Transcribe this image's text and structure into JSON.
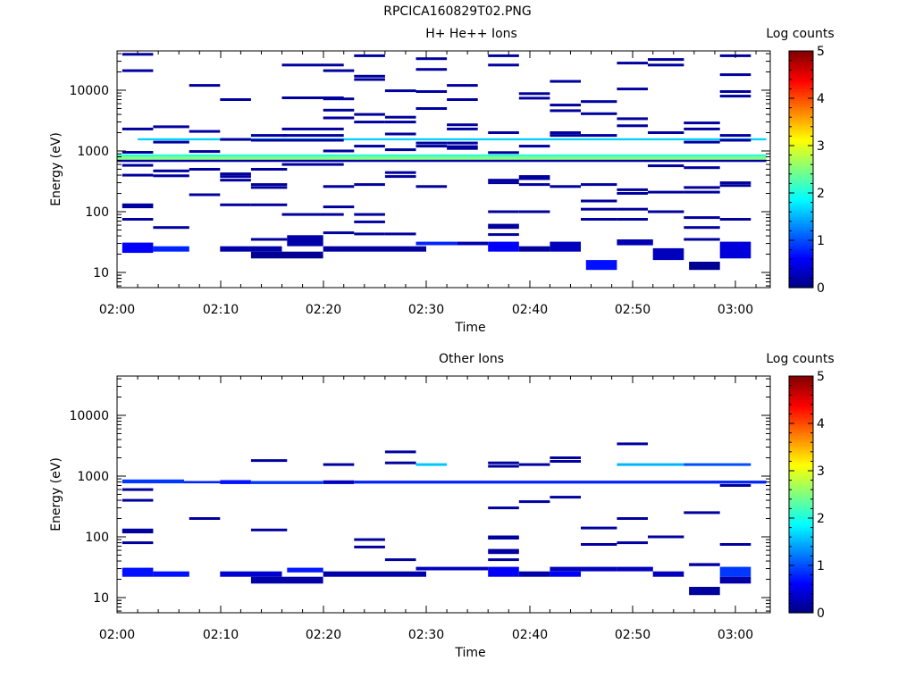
{
  "page_title": "RPCICA160829T02.PNG",
  "chart_data": [
    {
      "type": "heatmap",
      "title": "H+ He++ Ions",
      "xlabel": "Time",
      "ylabel": "Energy (eV)",
      "x_ticks": [
        "02:00",
        "02:10",
        "02:20",
        "02:30",
        "02:40",
        "02:50",
        "03:00"
      ],
      "x_range_minutes": [
        0,
        63
      ],
      "y_ticks": [
        "10",
        "100",
        "1000",
        "10000"
      ],
      "y_scale": "log",
      "ylim": [
        6,
        45000
      ],
      "colorbar": {
        "label": "Log counts",
        "ticks": [
          "0",
          "1",
          "2",
          "3",
          "4",
          "5"
        ],
        "range": [
          0,
          5
        ]
      },
      "cells": [
        {
          "t0": 0,
          "t1": 63,
          "e0": 660,
          "e1": 720,
          "c": 0.15
        },
        {
          "t0": 0,
          "t1": 63,
          "e0": 720,
          "e1": 800,
          "c": 2.55
        },
        {
          "t0": 0,
          "t1": 63,
          "e0": 800,
          "e1": 880,
          "c": 2.1
        },
        {
          "t0": 2,
          "t1": 63,
          "e0": 1500,
          "e1": 1620,
          "c": 1.65
        },
        {
          "t0": 0.5,
          "t1": 3.5,
          "e0": 21,
          "e1": 31,
          "c": 0.6
        },
        {
          "t0": 3.5,
          "t1": 7,
          "e0": 22,
          "e1": 27,
          "c": 0.8
        },
        {
          "t0": 10,
          "t1": 16,
          "e0": 22,
          "e1": 27,
          "c": 0.2
        },
        {
          "t0": 13,
          "t1": 20,
          "e0": 17,
          "e1": 22,
          "c": 0.1
        },
        {
          "t0": 16.5,
          "t1": 20,
          "e0": 27,
          "e1": 41,
          "c": 0.2
        },
        {
          "t0": 20,
          "t1": 30,
          "e0": 22,
          "e1": 27,
          "c": 0.15
        },
        {
          "t0": 29,
          "t1": 33,
          "e0": 28,
          "e1": 32,
          "c": 0.8
        },
        {
          "t0": 33,
          "t1": 36,
          "e0": 28,
          "e1": 32,
          "c": 0.25
        },
        {
          "t0": 36,
          "t1": 39,
          "e0": 22,
          "e1": 32,
          "c": 0.6
        },
        {
          "t0": 39,
          "t1": 42,
          "e0": 22,
          "e1": 27,
          "c": 0.15
        },
        {
          "t0": 42,
          "t1": 45,
          "e0": 22,
          "e1": 32,
          "c": 0.3
        },
        {
          "t0": 45.5,
          "t1": 48.5,
          "e0": 11,
          "e1": 16,
          "c": 0.7
        },
        {
          "t0": 48.5,
          "t1": 52,
          "e0": 28,
          "e1": 35,
          "c": 0.25
        },
        {
          "t0": 52,
          "t1": 55,
          "e0": 16,
          "e1": 25,
          "c": 0.3
        },
        {
          "t0": 55.5,
          "t1": 58.5,
          "e0": 11,
          "e1": 15,
          "c": 0.1
        },
        {
          "t0": 58.5,
          "t1": 61.5,
          "e0": 17,
          "e1": 32,
          "c": 0.45
        }
      ],
      "lines": [
        {
          "t0": 0.5,
          "t1": 3.5,
          "e": [
            39000,
            21000,
            2300,
            950,
            580,
            400,
            130,
            120,
            75
          ]
        },
        {
          "t0": 3.5,
          "t1": 7,
          "e": [
            2500,
            1400,
            470,
            390,
            55
          ]
        },
        {
          "t0": 7,
          "t1": 10,
          "e": [
            12000,
            2100,
            980,
            500,
            190
          ]
        },
        {
          "t0": 10,
          "t1": 13,
          "e": [
            7000,
            1550,
            420,
            380,
            330,
            130
          ]
        },
        {
          "t0": 13,
          "t1": 16.5,
          "e": [
            1800,
            1500,
            500,
            280,
            250,
            130,
            35
          ]
        },
        {
          "t0": 16,
          "t1": 22,
          "e": [
            26000,
            7500,
            2300,
            1800,
            1500,
            600,
            90
          ]
        },
        {
          "t0": 20,
          "t1": 23,
          "e": [
            21000,
            7200,
            4700,
            3500,
            1000,
            260,
            120,
            45
          ]
        },
        {
          "t0": 23,
          "t1": 26,
          "e": [
            37000,
            17000,
            15000,
            4000,
            3000,
            1200,
            280,
            90,
            68,
            43
          ]
        },
        {
          "t0": 26,
          "t1": 29,
          "e": [
            9800,
            3600,
            3000,
            1900,
            1050,
            440,
            380,
            43
          ]
        },
        {
          "t0": 29,
          "t1": 32,
          "e": [
            33000,
            22000,
            9500,
            5000,
            1350,
            1200,
            260
          ]
        },
        {
          "t0": 32,
          "t1": 35,
          "e": [
            12000,
            7000,
            2700,
            2300,
            1350,
            1180,
            1100
          ]
        },
        {
          "t0": 36,
          "t1": 39,
          "e": [
            37000,
            26000,
            2000,
            940,
            330,
            300,
            100,
            60,
            55,
            42
          ]
        },
        {
          "t0": 39,
          "t1": 42,
          "e": [
            8800,
            7400,
            1200,
            380,
            350,
            280,
            100
          ]
        },
        {
          "t0": 42,
          "t1": 45,
          "e": [
            14000,
            5700,
            4600,
            2000,
            1800,
            260
          ]
        },
        {
          "t0": 45,
          "t1": 48.5,
          "e": [
            6500,
            4100,
            1800,
            280,
            150,
            110,
            75
          ]
        },
        {
          "t0": 48.5,
          "t1": 51.5,
          "e": [
            28000,
            10500,
            3400,
            2600,
            230,
            200,
            110,
            75
          ]
        },
        {
          "t0": 51.5,
          "t1": 55,
          "e": [
            32000,
            26000,
            2000,
            570,
            210,
            100
          ]
        },
        {
          "t0": 55,
          "t1": 58.5,
          "e": [
            2900,
            2300,
            1400,
            530,
            250,
            210,
            80,
            55,
            35
          ]
        },
        {
          "t0": 58.5,
          "t1": 61.5,
          "e": [
            37000,
            18000,
            9500,
            8000,
            1800,
            1500,
            300,
            270,
            75
          ]
        }
      ]
    },
    {
      "type": "heatmap",
      "title": "Other Ions",
      "xlabel": "Time",
      "ylabel": "Energy (eV)",
      "x_ticks": [
        "02:00",
        "02:10",
        "02:20",
        "02:30",
        "02:40",
        "02:50",
        "03:00"
      ],
      "x_range_minutes": [
        0,
        63
      ],
      "y_ticks": [
        "10",
        "100",
        "1000",
        "10000"
      ],
      "y_scale": "log",
      "ylim": [
        6,
        45000
      ],
      "colorbar": {
        "label": "Log counts",
        "ticks": [
          "0",
          "1",
          "2",
          "3",
          "4",
          "5"
        ],
        "range": [
          0,
          5
        ]
      },
      "cells": [
        {
          "t0": 0.5,
          "t1": 6.5,
          "e0": 760,
          "e1": 880,
          "c": 0.9
        },
        {
          "t0": 6.5,
          "t1": 10,
          "e0": 760,
          "e1": 830,
          "c": 0.8
        },
        {
          "t0": 10,
          "t1": 13,
          "e0": 740,
          "e1": 860,
          "c": 0.7
        },
        {
          "t0": 13,
          "t1": 20,
          "e0": 740,
          "e1": 830,
          "c": 0.9
        },
        {
          "t0": 20,
          "t1": 23,
          "e0": 740,
          "e1": 850,
          "c": 0.3
        },
        {
          "t0": 23,
          "t1": 63,
          "e0": 750,
          "e1": 840,
          "c": 0.8
        },
        {
          "t0": 0.5,
          "t1": 3.5,
          "e0": 22,
          "e1": 31,
          "c": 0.7
        },
        {
          "t0": 3.5,
          "t1": 7,
          "e0": 22,
          "e1": 27,
          "c": 0.7
        },
        {
          "t0": 10,
          "t1": 16,
          "e0": 22,
          "e1": 27,
          "c": 0.4
        },
        {
          "t0": 13,
          "t1": 20,
          "e0": 17,
          "e1": 22,
          "c": 0.2
        },
        {
          "t0": 16.5,
          "t1": 20,
          "e0": 26,
          "e1": 31,
          "c": 0.75
        },
        {
          "t0": 20,
          "t1": 30,
          "e0": 22,
          "e1": 27,
          "c": 0.2
        },
        {
          "t0": 29,
          "t1": 36,
          "e0": 28,
          "e1": 32,
          "c": 0.3
        },
        {
          "t0": 36,
          "t1": 39,
          "e0": 22,
          "e1": 32,
          "c": 0.6
        },
        {
          "t0": 39,
          "t1": 42,
          "e0": 22,
          "e1": 27,
          "c": 0.2
        },
        {
          "t0": 42,
          "t1": 48.5,
          "e0": 27,
          "e1": 32,
          "c": 0.3
        },
        {
          "t0": 42,
          "t1": 45,
          "e0": 22,
          "e1": 27,
          "c": 0.6
        },
        {
          "t0": 48.5,
          "t1": 52,
          "e0": 27,
          "e1": 32,
          "c": 0.3
        },
        {
          "t0": 52,
          "t1": 55,
          "e0": 22,
          "e1": 27,
          "c": 0.3
        },
        {
          "t0": 55.5,
          "t1": 58.5,
          "e0": 11,
          "e1": 15,
          "c": 0.15
        },
        {
          "t0": 55.5,
          "t1": 58.5,
          "e0": 33,
          "e1": 37,
          "c": 0.2
        },
        {
          "t0": 58.5,
          "t1": 61.5,
          "e0": 17,
          "e1": 22,
          "c": 0.2
        },
        {
          "t0": 58.5,
          "t1": 61.5,
          "e0": 22,
          "e1": 32,
          "c": 0.9
        }
      ],
      "lines": [
        {
          "t0": 0.5,
          "t1": 3.5,
          "e": [
            600,
            400,
            130,
            120,
            80
          ]
        },
        {
          "t0": 7,
          "t1": 10,
          "e": [
            200
          ]
        },
        {
          "t0": 13,
          "t1": 16.5,
          "e": [
            1800,
            130
          ]
        },
        {
          "t0": 20,
          "t1": 23,
          "e": [
            1550
          ]
        },
        {
          "t0": 23,
          "t1": 26,
          "e": [
            90,
            68
          ]
        },
        {
          "t0": 26,
          "t1": 29,
          "e": [
            2500,
            1650,
            42
          ]
        },
        {
          "t0": 29,
          "t1": 32,
          "e": [
            1550
          ],
          "c": 1.6
        },
        {
          "t0": 36,
          "t1": 39,
          "e": [
            1650,
            1450,
            300,
            100,
            95,
            60,
            55,
            42
          ]
        },
        {
          "t0": 39,
          "t1": 42,
          "e": [
            1550,
            380
          ]
        },
        {
          "t0": 42,
          "t1": 45,
          "e": [
            2000,
            1750,
            450
          ]
        },
        {
          "t0": 45,
          "t1": 48.5,
          "e": [
            140,
            75
          ]
        },
        {
          "t0": 48.5,
          "t1": 51.5,
          "e": [
            3400,
            200,
            80
          ]
        },
        {
          "t0": 48.5,
          "t1": 55,
          "e": [
            1550
          ],
          "c": 1.5
        },
        {
          "t0": 51.5,
          "t1": 55,
          "e": [
            100
          ]
        },
        {
          "t0": 55,
          "t1": 58.5,
          "e": [
            250
          ]
        },
        {
          "t0": 55,
          "t1": 61.5,
          "e": [
            1550
          ],
          "c": 1.0
        },
        {
          "t0": 58.5,
          "t1": 61.5,
          "e": [
            700,
            75
          ]
        }
      ]
    }
  ]
}
